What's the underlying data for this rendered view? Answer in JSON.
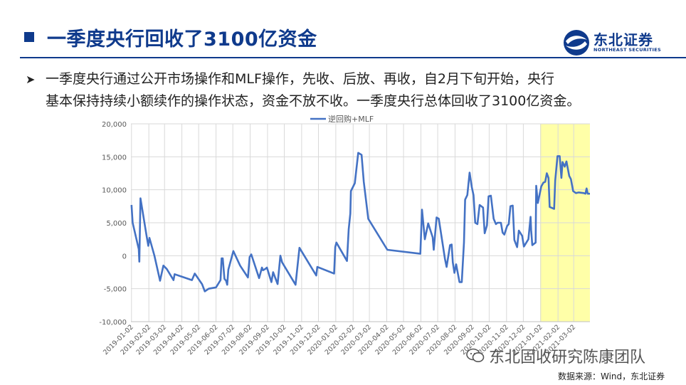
{
  "header": {
    "title": "一季度央行回收了3100亿资金"
  },
  "logo": {
    "name_cn": "东北证券",
    "name_en": "NORTHEAST SECURITIES"
  },
  "bullet": {
    "line1": "一季度央行通过公开市场操作和MLF操作，先收、后放、再收，自2月下旬开始，央行",
    "line2": "基本保持持续小额续作的操作状态，资金不放不收。一季度央行总体回收了3100亿资金。"
  },
  "watermark": "东北固收研究陈康团队",
  "source": "数据来源：Wind，东北证券",
  "colors": {
    "title": "#0f3a8c",
    "line": "#4472c4",
    "highlight": "#ffff99"
  },
  "chart_data": {
    "type": "line",
    "legend_position": "top",
    "grid": true,
    "ylim": [
      -10000,
      20000
    ],
    "y_ticks": [
      "-10,000",
      "-5,000",
      "0",
      "5,000",
      "10,000",
      "15,000",
      "20,000"
    ],
    "x_ticks": [
      "2019-01-02",
      "2019-02-02",
      "2019-03-02",
      "2019-04-02",
      "2019-05-02",
      "2019-06-02",
      "2019-07-02",
      "2019-08-02",
      "2019-09-02",
      "2019-10-02",
      "2019-11-02",
      "2019-12-02",
      "2020-01-02",
      "2020-02-02",
      "2020-03-02",
      "2020-04-02",
      "2020-05-02",
      "2020-06-02",
      "2020-07-02",
      "2020-08-02",
      "2020-09-02",
      "2020-10-02",
      "2020-11-02",
      "2020-12-02",
      "2021-01-02",
      "2021-02-02",
      "2021-03-02"
    ],
    "xlim": [
      "2019-01-01",
      "2021-03-31"
    ],
    "highlight_range": [
      "2021-01-01",
      "2021-03-31"
    ],
    "series": [
      {
        "name": "逆回购+MLF",
        "points": [
          [
            "2019-01-02",
            7700
          ],
          [
            "2019-01-04",
            5000
          ],
          [
            "2019-01-15",
            1000
          ],
          [
            "2019-01-16",
            -900
          ],
          [
            "2019-01-18",
            8700
          ],
          [
            "2019-01-29",
            3000
          ],
          [
            "2019-02-01",
            1500
          ],
          [
            "2019-02-03",
            2700
          ],
          [
            "2019-02-12",
            0
          ],
          [
            "2019-02-22",
            -3800
          ],
          [
            "2019-02-28",
            -1500
          ],
          [
            "2019-03-06",
            -2000
          ],
          [
            "2019-03-18",
            -3700
          ],
          [
            "2019-03-20",
            -2800
          ],
          [
            "2019-04-20",
            -3700
          ],
          [
            "2019-04-25",
            -2700
          ],
          [
            "2019-05-08",
            -4300
          ],
          [
            "2019-05-13",
            -5400
          ],
          [
            "2019-05-20",
            -5000
          ],
          [
            "2019-06-02",
            -4800
          ],
          [
            "2019-06-10",
            -3700
          ],
          [
            "2019-06-12",
            -400
          ],
          [
            "2019-06-14",
            -400
          ],
          [
            "2019-06-17",
            -3500
          ],
          [
            "2019-06-20",
            -3800
          ],
          [
            "2019-06-22",
            -4400
          ],
          [
            "2019-06-24",
            -2100
          ],
          [
            "2019-07-03",
            700
          ],
          [
            "2019-07-15",
            -1500
          ],
          [
            "2019-07-29",
            -3300
          ],
          [
            "2019-08-01",
            -200
          ],
          [
            "2019-08-04",
            200
          ],
          [
            "2019-08-18",
            -3400
          ],
          [
            "2019-08-23",
            -1800
          ],
          [
            "2019-08-25",
            -2200
          ],
          [
            "2019-08-29",
            -2000
          ],
          [
            "2019-09-01",
            -1800
          ],
          [
            "2019-09-09",
            -4000
          ],
          [
            "2019-09-12",
            -2500
          ],
          [
            "2019-09-20",
            -4300
          ],
          [
            "2019-09-25",
            0
          ],
          [
            "2019-09-28",
            -1000
          ],
          [
            "2019-10-22",
            -4400
          ],
          [
            "2019-10-29",
            1200
          ],
          [
            "2019-11-28",
            -3000
          ],
          [
            "2019-11-30",
            -1700
          ],
          [
            "2019-12-30",
            -2700
          ],
          [
            "2020-01-01",
            1300
          ],
          [
            "2020-01-03",
            2000
          ],
          [
            "2020-01-22",
            -800
          ],
          [
            "2020-01-25",
            4000
          ],
          [
            "2020-01-28",
            6400
          ],
          [
            "2020-01-29",
            9800
          ],
          [
            "2020-02-05",
            11000
          ],
          [
            "2020-02-11",
            15600
          ],
          [
            "2020-02-17",
            15300
          ],
          [
            "2020-02-21",
            11200
          ],
          [
            "2020-02-29",
            5600
          ],
          [
            "2020-04-03",
            900
          ],
          [
            "2020-06-01",
            300
          ],
          [
            "2020-06-04",
            7000
          ],
          [
            "2020-06-09",
            2500
          ],
          [
            "2020-06-15",
            4900
          ],
          [
            "2020-06-23",
            2800
          ],
          [
            "2020-06-25",
            900
          ],
          [
            "2020-06-30",
            5800
          ],
          [
            "2020-07-04",
            5600
          ],
          [
            "2020-07-15",
            -500
          ],
          [
            "2020-07-18",
            -1700
          ],
          [
            "2020-07-24",
            1600
          ],
          [
            "2020-07-27",
            1700
          ],
          [
            "2020-07-29",
            -1000
          ],
          [
            "2020-08-01",
            -2600
          ],
          [
            "2020-08-04",
            -1300
          ],
          [
            "2020-08-10",
            -4000
          ],
          [
            "2020-08-14",
            -4000
          ],
          [
            "2020-08-18",
            2000
          ],
          [
            "2020-08-20",
            8500
          ],
          [
            "2020-08-24",
            9200
          ],
          [
            "2020-08-28",
            12600
          ],
          [
            "2020-09-01",
            10400
          ],
          [
            "2020-09-04",
            9200
          ],
          [
            "2020-09-07",
            5000
          ],
          [
            "2020-09-11",
            4800
          ],
          [
            "2020-09-15",
            7700
          ],
          [
            "2020-09-21",
            7300
          ],
          [
            "2020-09-24",
            3400
          ],
          [
            "2020-09-28",
            4600
          ],
          [
            "2020-10-01",
            9000
          ],
          [
            "2020-10-05",
            9100
          ],
          [
            "2020-10-10",
            5600
          ],
          [
            "2020-10-14",
            4800
          ],
          [
            "2020-10-17",
            5000
          ],
          [
            "2020-10-23",
            5000
          ],
          [
            "2020-10-26",
            3500
          ],
          [
            "2020-10-29",
            3200
          ],
          [
            "2020-11-03",
            4500
          ],
          [
            "2020-11-06",
            4800
          ],
          [
            "2020-11-09",
            7500
          ],
          [
            "2020-11-13",
            7600
          ],
          [
            "2020-11-16",
            2400
          ],
          [
            "2020-11-21",
            1300
          ],
          [
            "2020-11-24",
            3800
          ],
          [
            "2020-11-30",
            3000
          ],
          [
            "2020-12-03",
            1400
          ],
          [
            "2020-12-11",
            2500
          ],
          [
            "2020-12-15",
            5900
          ],
          [
            "2020-12-16",
            3900
          ],
          [
            "2020-12-18",
            1600
          ],
          [
            "2020-12-24",
            2000
          ],
          [
            "2020-12-25",
            10600
          ],
          [
            "2020-12-28",
            8000
          ],
          [
            "2021-01-03",
            10500
          ],
          [
            "2021-01-07",
            11100
          ],
          [
            "2021-01-10",
            11200
          ],
          [
            "2021-01-13",
            12500
          ],
          [
            "2021-01-16",
            11800
          ],
          [
            "2021-01-18",
            7400
          ],
          [
            "2021-01-26",
            7100
          ],
          [
            "2021-01-28",
            11400
          ],
          [
            "2021-02-01",
            15100
          ],
          [
            "2021-02-05",
            15100
          ],
          [
            "2021-02-08",
            11800
          ],
          [
            "2021-02-10",
            14200
          ],
          [
            "2021-02-14",
            13500
          ],
          [
            "2021-02-17",
            14300
          ],
          [
            "2021-02-22",
            12100
          ],
          [
            "2021-02-25",
            11600
          ],
          [
            "2021-03-01",
            9800
          ],
          [
            "2021-03-06",
            9500
          ],
          [
            "2021-03-11",
            9600
          ],
          [
            "2021-03-20",
            9500
          ],
          [
            "2021-03-23",
            9400
          ],
          [
            "2021-03-25",
            10200
          ],
          [
            "2021-03-27",
            9400
          ],
          [
            "2021-03-31",
            9400
          ]
        ]
      }
    ]
  }
}
